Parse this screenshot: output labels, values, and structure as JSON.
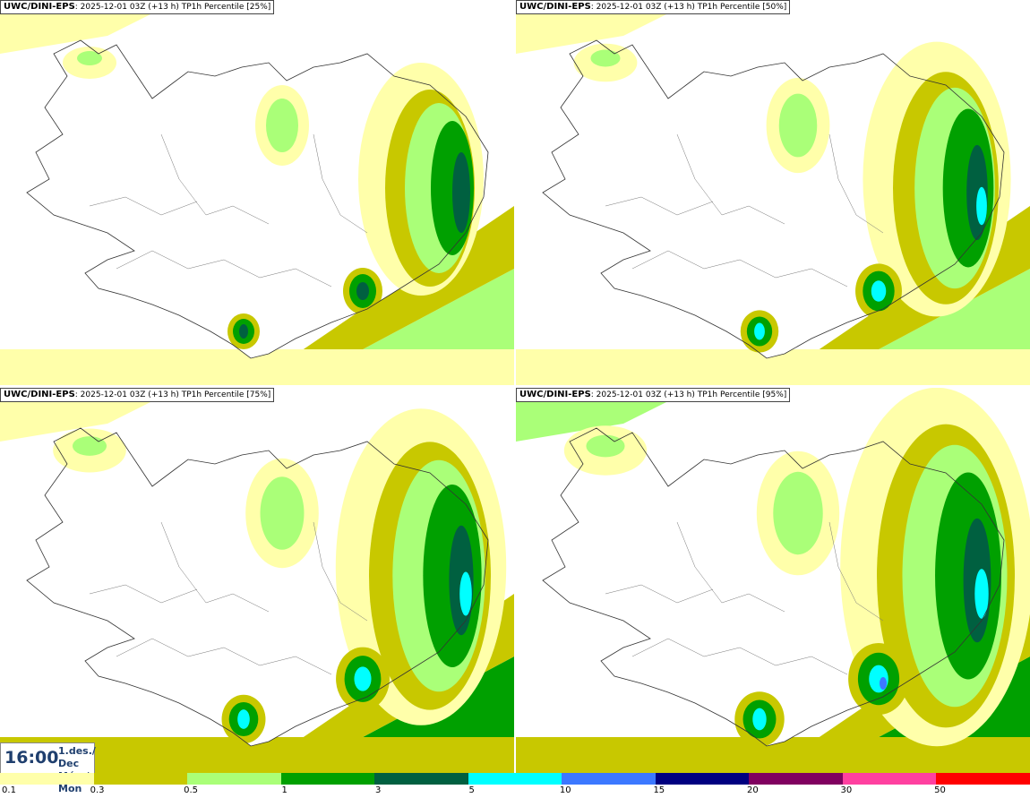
{
  "panels": [
    {
      "model": "UWC/DINI-EPS",
      "run": ": 2025-12-01 03Z (+13 h)",
      "field": " TP1h Percentile [25%]",
      "level": 0
    },
    {
      "model": "UWC/DINI-EPS",
      "run": ": 2025-12-01 03Z (+13 h)",
      "field": " TP1h Percentile [50%]",
      "level": 1
    },
    {
      "model": "UWC/DINI-EPS",
      "run": ": 2025-12-01 03Z (+13 h)",
      "field": " TP1h Percentile [75%]",
      "level": 2
    },
    {
      "model": "UWC/DINI-EPS",
      "run": ": 2025-12-01 03Z (+13 h)",
      "field": " TP1h Percentile [95%]",
      "level": 3
    }
  ],
  "valid_time": {
    "clock": "16:00",
    "date_line1": "1.des./ Dec",
    "date_line2": "Mán./ Mon"
  },
  "legend": {
    "labels": [
      "0.1",
      "0.3",
      "0.5",
      "1",
      "3",
      "5",
      "10",
      "15",
      "20",
      "30",
      "50"
    ],
    "colors": [
      "#ffffaa",
      "#c8c800",
      "#aaff78",
      "#00a000",
      "#006040",
      "#00ffff",
      "#3c78ff",
      "#000080",
      "#800060",
      "#ff40a0",
      "#ff0000"
    ]
  }
}
